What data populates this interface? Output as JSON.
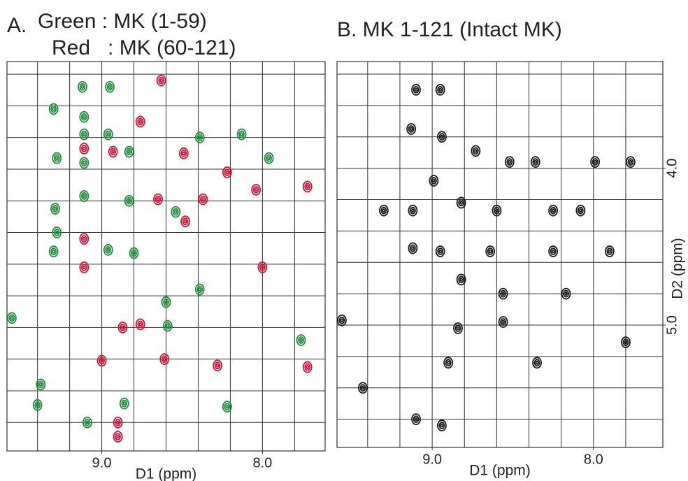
{
  "chart_data": [
    {
      "type": "scatter",
      "title": "A.",
      "x_label": "D1 (ppm)",
      "xlim": [
        9.59,
        7.61
      ],
      "ylim": [
        3.32,
        5.78
      ],
      "xticks": [
        {
          "value": 9,
          "label": "9.0"
        },
        {
          "value": 8,
          "label": "8.0"
        }
      ],
      "xgrid": [
        9.4,
        9.2,
        9.0,
        8.8,
        8.6,
        8.4,
        8.2,
        8.0,
        7.8
      ],
      "ygrid": [
        3.4,
        3.6,
        3.8,
        4.0,
        4.2,
        4.4,
        4.6,
        4.8,
        5.0,
        5.2,
        5.4,
        5.6
      ],
      "series": [
        {
          "name": "Green : MK (1-59)",
          "color": "#1f8a3c",
          "x": [
            9.12,
            8.95,
            9.3,
            9.11,
            9.11,
            8.96,
            9.28,
            9.11,
            8.83,
            9.11,
            8.83,
            9.29,
            9.28,
            9.3,
            8.96,
            8.8,
            8.54,
            8.39,
            8.13,
            7.96,
            8.6,
            8.39,
            8.59,
            9.56,
            9.38,
            9.4,
            7.76,
            8.22,
            8.86,
            9.09
          ],
          "y": [
            3.48,
            3.48,
            3.62,
            3.67,
            3.78,
            3.78,
            3.93,
            3.96,
            3.89,
            4.17,
            4.2,
            4.25,
            4.4,
            4.52,
            4.51,
            4.53,
            4.27,
            3.8,
            3.78,
            3.93,
            4.84,
            4.76,
            4.99,
            4.94,
            5.36,
            5.49,
            5.08,
            5.5,
            5.48,
            5.6
          ]
        },
        {
          "name": "Red   : MK (60-121)",
          "color": "#d3123c",
          "x": [
            8.63,
            8.76,
            9.11,
            8.93,
            8.49,
            8.22,
            8.37,
            8.65,
            9.11,
            9.11,
            8.04,
            7.72,
            8.48,
            8.76,
            8.87,
            9.0,
            8.28,
            7.72,
            8.9,
            8.9,
            8.61,
            8.0
          ],
          "y": [
            3.44,
            3.7,
            3.87,
            3.89,
            3.9,
            4.02,
            4.19,
            4.19,
            4.44,
            4.62,
            4.13,
            4.11,
            4.33,
            4.98,
            5.0,
            5.21,
            5.24,
            5.25,
            5.6,
            5.69,
            5.2,
            4.62
          ]
        }
      ]
    },
    {
      "type": "scatter",
      "title": "B. MK 1-121 (Intact MK)",
      "x_label": "D1 (ppm)",
      "y_label": "D2 (ppm)",
      "xlim": [
        9.59,
        7.57
      ],
      "ylim": [
        3.32,
        5.78
      ],
      "xticks": [
        {
          "value": 9,
          "label": "9.0"
        },
        {
          "value": 8,
          "label": "8.0"
        }
      ],
      "yticks": [
        {
          "value": 4,
          "label": "4.0"
        },
        {
          "value": 5,
          "label": "5.0"
        }
      ],
      "xgrid": [
        9.4,
        9.2,
        9.0,
        8.8,
        8.6,
        8.4,
        8.2,
        8.0,
        7.8
      ],
      "ygrid": [
        3.4,
        3.6,
        3.8,
        4.0,
        4.2,
        4.4,
        4.6,
        4.8,
        5.0,
        5.2,
        5.4,
        5.6
      ],
      "series": [
        {
          "color": "#1a1a1a",
          "x": [
            9.1,
            8.95,
            9.13,
            8.94,
            8.73,
            8.52,
            8.36,
            7.99,
            8.99,
            9.12,
            9.3,
            8.82,
            8.6,
            8.25,
            8.08,
            9.12,
            8.95,
            8.64,
            8.25,
            7.9,
            8.82,
            8.56,
            8.17,
            9.56,
            8.84,
            8.56,
            9.43,
            9.1,
            8.94,
            7.8,
            8.35,
            8.9,
            7.77
          ],
          "y": [
            3.5,
            3.5,
            3.75,
            3.8,
            3.89,
            3.96,
            3.96,
            3.96,
            4.08,
            4.27,
            4.27,
            4.22,
            4.27,
            4.27,
            4.27,
            4.51,
            4.53,
            4.53,
            4.53,
            4.53,
            4.71,
            4.8,
            4.8,
            4.97,
            5.02,
            4.98,
            5.4,
            5.6,
            5.64,
            5.11,
            5.24,
            5.24,
            3.96
          ]
        }
      ]
    }
  ]
}
